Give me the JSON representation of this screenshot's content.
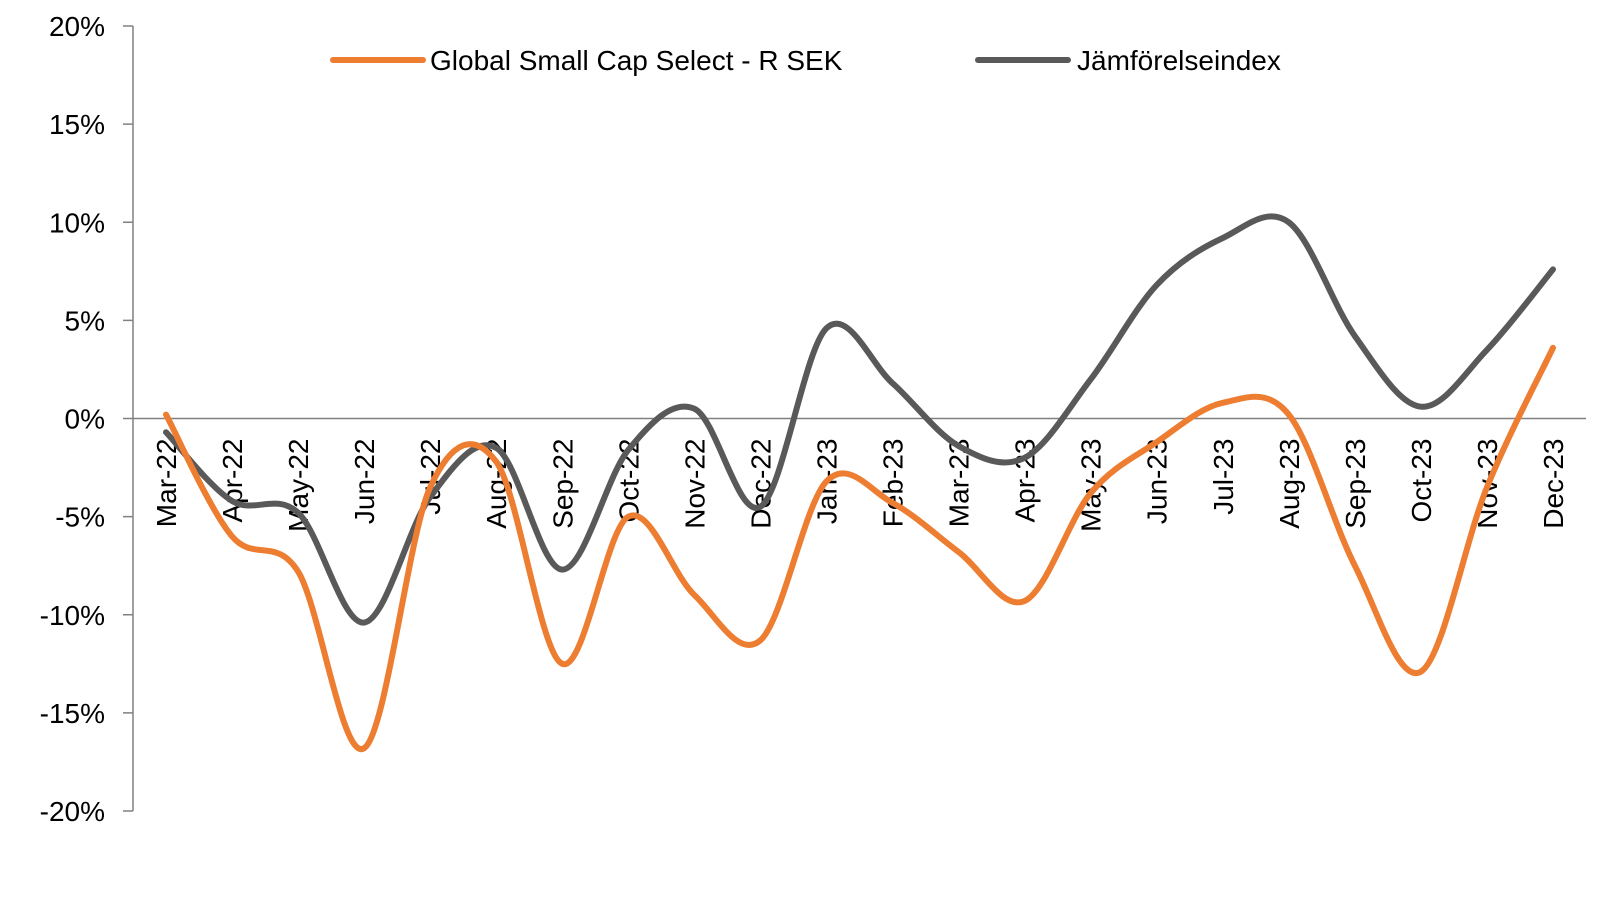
{
  "chart_data": {
    "type": "line",
    "title": "",
    "xlabel": "",
    "ylabel": "",
    "ylim": [
      -20,
      20
    ],
    "yticks": [
      20,
      15,
      10,
      5,
      0,
      -5,
      -10,
      -15,
      -20
    ],
    "ytick_labels": [
      "20%",
      "15%",
      "10%",
      "5%",
      "0%",
      "-5%",
      "-10%",
      "-15%",
      "-20%"
    ],
    "categories": [
      "Mar-22",
      "Apr-22",
      "May-22",
      "Jun-22",
      "Jul-22",
      "Aug-22",
      "Sep-22",
      "Oct-22",
      "Nov-22",
      "Dec-22",
      "Jan-23",
      "Feb-23",
      "Mar-23",
      "Apr-23",
      "May-23",
      "Jun-23",
      "Jul-23",
      "Aug-23",
      "Sep-23",
      "Oct-23",
      "Nov-23",
      "Dec-23"
    ],
    "series": [
      {
        "name": "Global Small Cap Select - R SEK",
        "color": "#ED7D31",
        "values": [
          0.2,
          -6.0,
          -7.8,
          -16.8,
          -3.5,
          -2.2,
          -12.5,
          -5.0,
          -9.0,
          -11.3,
          -3.2,
          -4.3,
          -6.8,
          -9.3,
          -3.8,
          -1.2,
          0.8,
          0.2,
          -7.5,
          -12.9,
          -3.5,
          3.6
        ]
      },
      {
        "name": "Jämförelseindex",
        "color": "#595959",
        "values": [
          -0.7,
          -4.2,
          -4.8,
          -10.4,
          -4.0,
          -1.5,
          -7.7,
          -1.6,
          0.5,
          -4.5,
          4.6,
          1.8,
          -1.4,
          -2.0,
          2.0,
          6.8,
          9.2,
          10.0,
          4.2,
          0.6,
          3.5,
          7.6
        ]
      }
    ],
    "legend": {
      "position": "top-center",
      "entries": [
        "Global Small Cap Select - R SEK",
        "Jämförelseindex"
      ]
    },
    "grid": false
  }
}
